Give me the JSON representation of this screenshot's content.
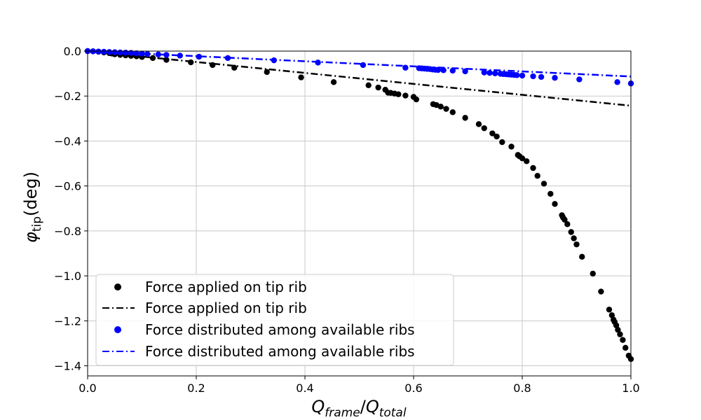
{
  "chart_data": {
    "type": "scatter",
    "xlabel": {
      "main": "Q",
      "sub1": "frame",
      "slash": "/",
      "main2": "Q",
      "sub2": "total"
    },
    "ylabel": {
      "main": "φ",
      "sub": "tip",
      "unit": "(deg)"
    },
    "xlim": [
      0,
      1.0
    ],
    "ylim": [
      -1.445,
      0.0
    ],
    "xticks": [
      0.0,
      0.2,
      0.4,
      0.6,
      0.8,
      1.0
    ],
    "xtick_labels": [
      "0.0",
      "0.2",
      "0.4",
      "0.6",
      "0.8",
      "1.0"
    ],
    "yticks": [
      0.0,
      -0.2,
      -0.4,
      -0.6,
      -0.8,
      -1.0,
      -1.2,
      -1.4
    ],
    "ytick_labels": [
      "0.0",
      "−0.2",
      "−0.4",
      "−0.6",
      "−0.8",
      "−1.0",
      "−1.2",
      "−1.4"
    ],
    "grid": true,
    "legend_position": "lower-left",
    "series": [
      {
        "name": "Force applied on tip rib",
        "kind": "markers",
        "color": "#000000",
        "points": [
          [
            0.0,
            0.0
          ],
          [
            0.01,
            -0.001
          ],
          [
            0.02,
            -0.003
          ],
          [
            0.03,
            -0.006
          ],
          [
            0.04,
            -0.009
          ],
          [
            0.045,
            -0.011
          ],
          [
            0.05,
            -0.014
          ],
          [
            0.06,
            -0.017
          ],
          [
            0.07,
            -0.019
          ],
          [
            0.08,
            -0.021
          ],
          [
            0.09,
            -0.023
          ],
          [
            0.1,
            -0.026
          ],
          [
            0.12,
            -0.031
          ],
          [
            0.145,
            -0.039
          ],
          [
            0.19,
            -0.05
          ],
          [
            0.23,
            -0.062
          ],
          [
            0.27,
            -0.074
          ],
          [
            0.33,
            -0.093
          ],
          [
            0.393,
            -0.117
          ],
          [
            0.453,
            -0.138
          ],
          [
            0.517,
            -0.152
          ],
          [
            0.535,
            -0.162
          ],
          [
            0.548,
            -0.172
          ],
          [
            0.553,
            -0.185
          ],
          [
            0.558,
            -0.186
          ],
          [
            0.565,
            -0.189
          ],
          [
            0.572,
            -0.192
          ],
          [
            0.585,
            -0.198
          ],
          [
            0.6,
            -0.204
          ],
          [
            0.605,
            -0.215
          ],
          [
            0.636,
            -0.236
          ],
          [
            0.642,
            -0.24
          ],
          [
            0.65,
            -0.247
          ],
          [
            0.66,
            -0.257
          ],
          [
            0.672,
            -0.272
          ],
          [
            0.695,
            -0.297
          ],
          [
            0.72,
            -0.325
          ],
          [
            0.73,
            -0.343
          ],
          [
            0.745,
            -0.366
          ],
          [
            0.753,
            -0.38
          ],
          [
            0.763,
            -0.405
          ],
          [
            0.78,
            -0.425
          ],
          [
            0.792,
            -0.462
          ],
          [
            0.795,
            -0.468
          ],
          [
            0.8,
            -0.477
          ],
          [
            0.808,
            -0.49
          ],
          [
            0.82,
            -0.52
          ],
          [
            0.828,
            -0.555
          ],
          [
            0.84,
            -0.59
          ],
          [
            0.852,
            -0.635
          ],
          [
            0.86,
            -0.68
          ],
          [
            0.873,
            -0.73
          ],
          [
            0.875,
            -0.74
          ],
          [
            0.878,
            -0.75
          ],
          [
            0.883,
            -0.77
          ],
          [
            0.89,
            -0.805
          ],
          [
            0.895,
            -0.833
          ],
          [
            0.9,
            -0.86
          ],
          [
            0.91,
            -0.915
          ],
          [
            0.93,
            -0.99
          ],
          [
            0.945,
            -1.07
          ],
          [
            0.96,
            -1.15
          ],
          [
            0.965,
            -1.175
          ],
          [
            0.968,
            -1.195
          ],
          [
            0.97,
            -1.205
          ],
          [
            0.973,
            -1.22
          ],
          [
            0.976,
            -1.24
          ],
          [
            0.98,
            -1.26
          ],
          [
            0.985,
            -1.285
          ],
          [
            0.99,
            -1.32
          ],
          [
            0.996,
            -1.355
          ],
          [
            1.0,
            -1.37
          ]
        ]
      },
      {
        "name": "Force applied on tip rib",
        "kind": "line-dashdot",
        "color": "#000000",
        "points": [
          [
            0.0,
            0.0
          ],
          [
            1.0,
            -0.243
          ]
        ]
      },
      {
        "name": "Force distributed among available ribs",
        "kind": "markers",
        "color": "#0000ff",
        "points": [
          [
            0.0,
            0.0
          ],
          [
            0.01,
            -0.001
          ],
          [
            0.02,
            -0.002
          ],
          [
            0.03,
            -0.003
          ],
          [
            0.04,
            -0.004
          ],
          [
            0.05,
            -0.005
          ],
          [
            0.06,
            -0.006
          ],
          [
            0.07,
            -0.007
          ],
          [
            0.08,
            -0.008
          ],
          [
            0.09,
            -0.01
          ],
          [
            0.1,
            -0.011
          ],
          [
            0.11,
            -0.013
          ],
          [
            0.13,
            -0.015
          ],
          [
            0.145,
            -0.017
          ],
          [
            0.17,
            -0.02
          ],
          [
            0.205,
            -0.025
          ],
          [
            0.258,
            -0.031
          ],
          [
            0.343,
            -0.041
          ],
          [
            0.424,
            -0.051
          ],
          [
            0.507,
            -0.062
          ],
          [
            0.585,
            -0.074
          ],
          [
            0.61,
            -0.076
          ],
          [
            0.615,
            -0.077
          ],
          [
            0.62,
            -0.078
          ],
          [
            0.625,
            -0.079
          ],
          [
            0.63,
            -0.08
          ],
          [
            0.635,
            -0.082
          ],
          [
            0.64,
            -0.083
          ],
          [
            0.645,
            -0.084
          ],
          [
            0.655,
            -0.085
          ],
          [
            0.672,
            -0.087
          ],
          [
            0.695,
            -0.09
          ],
          [
            0.73,
            -0.095
          ],
          [
            0.74,
            -0.097
          ],
          [
            0.75,
            -0.099
          ],
          [
            0.76,
            -0.101
          ],
          [
            0.765,
            -0.102
          ],
          [
            0.77,
            -0.103
          ],
          [
            0.775,
            -0.104
          ],
          [
            0.78,
            -0.105
          ],
          [
            0.785,
            -0.106
          ],
          [
            0.79,
            -0.107
          ],
          [
            0.8,
            -0.109
          ],
          [
            0.82,
            -0.112
          ],
          [
            0.835,
            -0.115
          ],
          [
            0.86,
            -0.119
          ],
          [
            0.905,
            -0.126
          ],
          [
            0.975,
            -0.138
          ],
          [
            1.0,
            -0.144
          ]
        ]
      },
      {
        "name": "Force distributed among available ribs",
        "kind": "line-dashdot",
        "color": "#0000ff",
        "points": [
          [
            0.0,
            0.0
          ],
          [
            1.0,
            -0.113
          ]
        ]
      }
    ]
  }
}
